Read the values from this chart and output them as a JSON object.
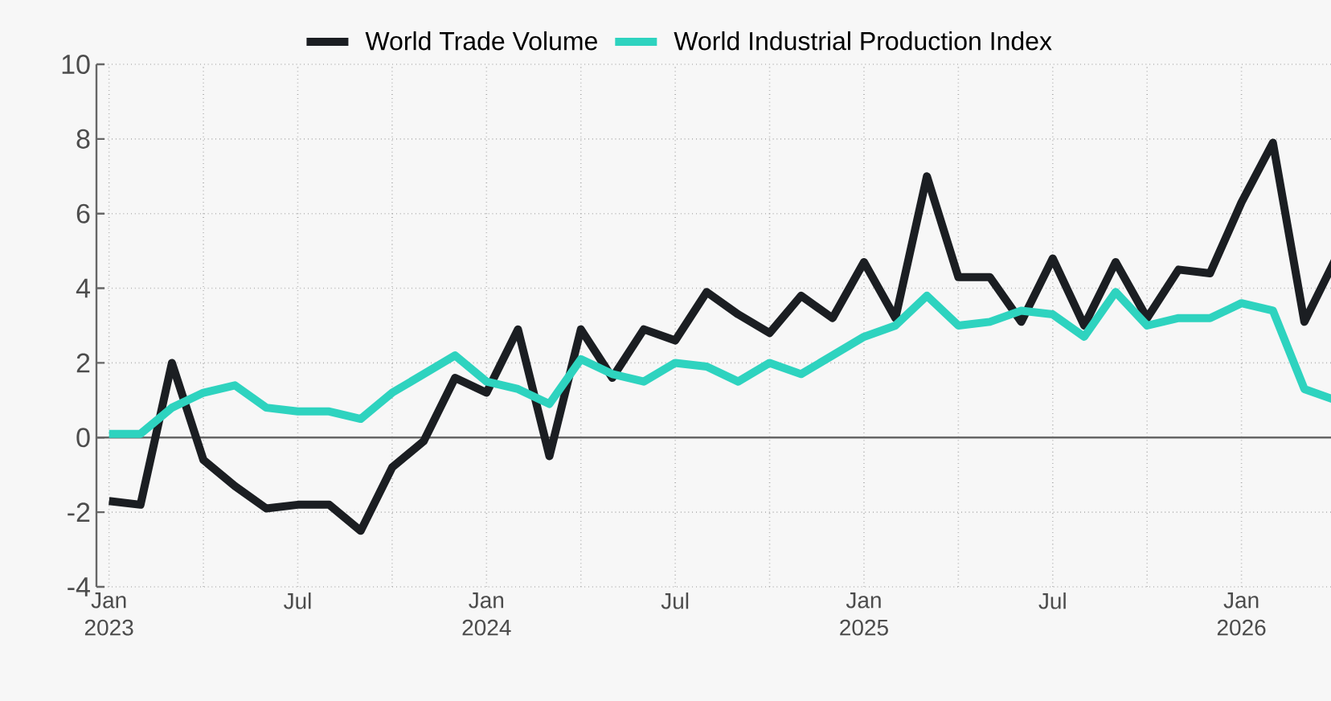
{
  "chart_data": {
    "type": "line",
    "x": [
      "2023-01-01",
      "2023-02-01",
      "2023-03-01",
      "2023-04-01",
      "2023-05-01",
      "2023-06-01",
      "2023-07-01",
      "2023-08-01",
      "2023-09-01",
      "2023-10-01",
      "2023-11-01",
      "2023-12-01",
      "2024-01-01",
      "2024-02-01",
      "2024-03-01",
      "2024-04-01",
      "2024-05-01",
      "2024-06-01",
      "2024-07-01",
      "2024-08-01",
      "2024-09-01",
      "2024-10-01",
      "2024-11-01",
      "2024-12-01",
      "2025-01-01",
      "2025-02-01",
      "2025-03-01",
      "2025-04-01",
      "2025-05-01",
      "2025-06-01",
      "2025-07-01",
      "2025-08-01",
      "2025-09-01",
      "2025-10-01",
      "2025-11-01",
      "2025-12-01",
      "2026-01-01",
      "2026-02-01",
      "2026-03-01",
      "2026-04-01"
    ],
    "series": [
      {
        "name": "World Trade Volume",
        "color": "#1b1e22",
        "values": [
          -1.7,
          -1.8,
          2.0,
          -0.6,
          -1.3,
          -1.9,
          -1.8,
          -1.8,
          -2.5,
          -0.8,
          -0.1,
          1.6,
          1.2,
          2.9,
          -0.5,
          2.9,
          1.6,
          2.9,
          2.6,
          3.9,
          3.3,
          2.8,
          3.8,
          3.2,
          4.7,
          3.2,
          7.0,
          4.3,
          4.3,
          3.1,
          4.8,
          3.0,
          4.7,
          3.2,
          4.5,
          4.4,
          6.3,
          7.9,
          3.1,
          4.8
        ]
      },
      {
        "name": "World Industrial Production Index",
        "color": "#2ed3bf",
        "values": [
          0.1,
          0.1,
          0.8,
          1.2,
          1.4,
          0.8,
          0.7,
          0.7,
          0.5,
          1.2,
          1.7,
          2.2,
          1.5,
          1.3,
          0.9,
          2.1,
          1.7,
          1.5,
          2.0,
          1.9,
          1.5,
          2.0,
          1.7,
          2.2,
          2.7,
          3.0,
          3.8,
          3.0,
          3.1,
          3.4,
          3.3,
          2.7,
          3.9,
          3.0,
          3.2,
          3.2,
          3.6,
          3.4,
          1.3,
          1.0
        ]
      }
    ],
    "xlim": [
      "2022-12-19",
      "2026-04-01"
    ],
    "xticks": [
      {
        "value": "2023-01-01",
        "label": "Jan 2023"
      },
      {
        "value": "2023-04-01",
        "label": null
      },
      {
        "value": "2023-07-01",
        "label": "Jul"
      },
      {
        "value": "2023-10-01",
        "label": null
      },
      {
        "value": "2024-01-01",
        "label": "Jan 2024"
      },
      {
        "value": "2024-04-01",
        "label": null
      },
      {
        "value": "2024-07-01",
        "label": "Jul"
      },
      {
        "value": "2024-10-01",
        "label": null
      },
      {
        "value": "2025-01-01",
        "label": "Jan 2025"
      },
      {
        "value": "2025-04-01",
        "label": null
      },
      {
        "value": "2025-07-01",
        "label": "Jul"
      },
      {
        "value": "2025-10-01",
        "label": null
      },
      {
        "value": "2026-01-01",
        "label": "Jan 2026"
      },
      {
        "value": "2026-04-01",
        "label": null
      }
    ],
    "ylim": [
      -4,
      10
    ],
    "yticks": [
      -4,
      -2,
      0,
      2,
      4,
      6,
      8,
      10
    ],
    "grid": true,
    "legend": "top",
    "marker": "none",
    "line_style": "solid"
  }
}
